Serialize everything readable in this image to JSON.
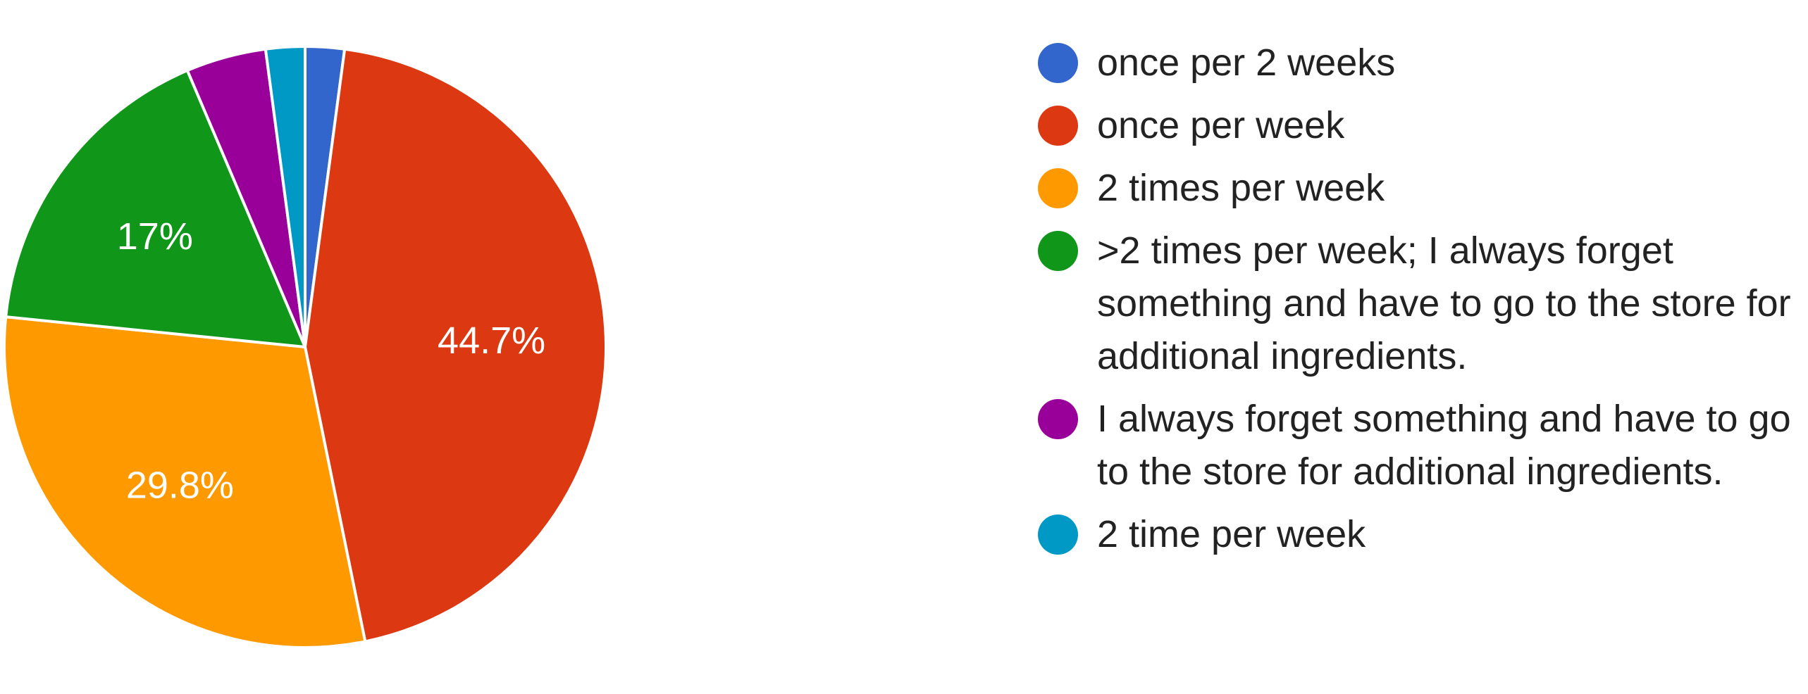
{
  "chart_data": {
    "type": "pie",
    "title": "",
    "start_angle_deg": 90,
    "direction": "clockwise",
    "legend_position": "right",
    "slices": [
      {
        "label": "once per 2 weeks",
        "value": 2.1,
        "display": "",
        "color": "#3366cc"
      },
      {
        "label": "once per week",
        "value": 44.7,
        "display": "44.7%",
        "color": "#dc3912"
      },
      {
        "label": "2 times per week",
        "value": 29.8,
        "display": "29.8%",
        "color": "#ff9900"
      },
      {
        "label": ">2 times per week; I always forget something and have to go to the store for additional ingredients.",
        "value": 17.0,
        "display": "17%",
        "color": "#109618"
      },
      {
        "label": "I always forget something and have to go to the store for additional ingredients.",
        "value": 4.3,
        "display": "",
        "color": "#990099"
      },
      {
        "label": "2 time per week",
        "value": 2.1,
        "display": "",
        "color": "#0099c6"
      }
    ]
  }
}
